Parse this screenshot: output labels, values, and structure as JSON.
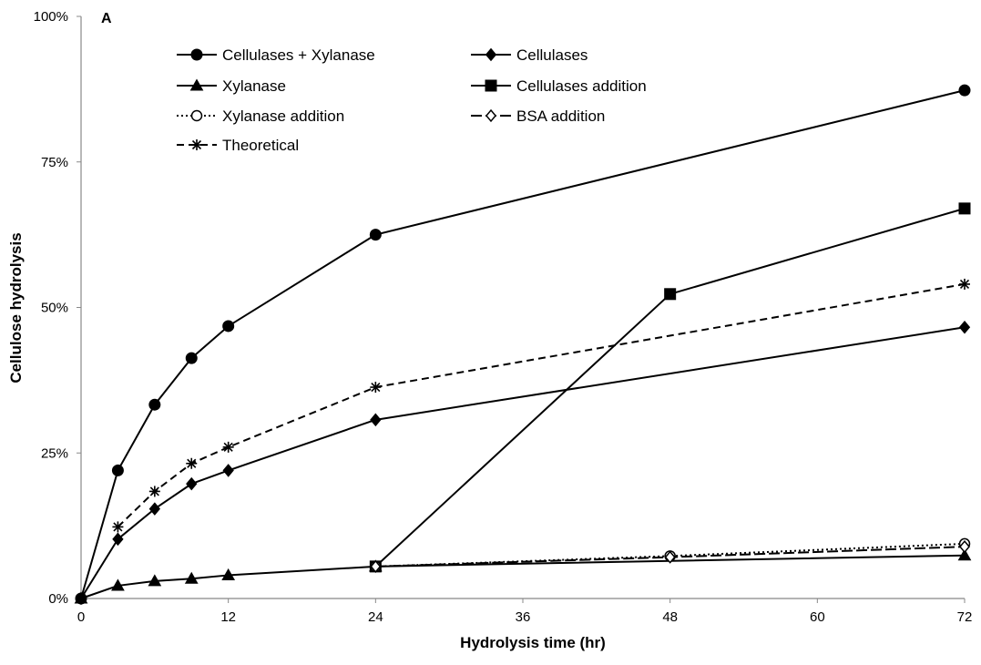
{
  "chart_data": {
    "type": "line",
    "panel_label": "A",
    "xlabel": "Hydrolysis time (hr)",
    "ylabel": "Cellulose hydrolysis",
    "xlim": [
      0,
      72
    ],
    "ylim": [
      0,
      1
    ],
    "x_ticks": [
      0,
      12,
      24,
      36,
      48,
      60,
      72
    ],
    "x_tick_labels": [
      "0",
      "12",
      "24",
      "36",
      "48",
      "60",
      "72"
    ],
    "y_ticks": [
      0,
      0.25,
      0.5,
      0.75,
      1
    ],
    "y_tick_labels": [
      "0%",
      "25%",
      "50%",
      "75%",
      "100%"
    ],
    "grid": false,
    "legend_position": "top-left",
    "series": [
      {
        "name": "Cellulases + Xylanase",
        "marker": "circle-filled",
        "line": "solid",
        "color": "#000000",
        "x": [
          0,
          3,
          6,
          9,
          12,
          24,
          72
        ],
        "y": [
          0,
          0.22,
          0.333,
          0.413,
          0.468,
          0.625,
          0.873
        ]
      },
      {
        "name": "Cellulases",
        "marker": "diamond-filled",
        "line": "solid",
        "color": "#000000",
        "x": [
          0,
          3,
          6,
          9,
          12,
          24,
          72
        ],
        "y": [
          0,
          0.102,
          0.154,
          0.197,
          0.22,
          0.307,
          0.466
        ]
      },
      {
        "name": "Xylanase",
        "marker": "triangle-filled",
        "line": "solid",
        "color": "#000000",
        "x": [
          0,
          3,
          6,
          9,
          12,
          24,
          72
        ],
        "y": [
          0,
          0.022,
          0.03,
          0.034,
          0.04,
          0.055,
          0.074
        ]
      },
      {
        "name": "Cellulases addition",
        "marker": "square-filled",
        "line": "solid",
        "color": "#000000",
        "x": [
          24,
          48,
          72
        ],
        "y": [
          0.055,
          0.523,
          0.67
        ]
      },
      {
        "name": "Xylanase addition",
        "marker": "circle-open",
        "line": "dotted",
        "color": "#000000",
        "x": [
          24,
          48,
          72
        ],
        "y": [
          0.055,
          0.073,
          0.094
        ]
      },
      {
        "name": "BSA addition",
        "marker": "diamond-open",
        "line": "longdash",
        "color": "#000000",
        "x": [
          24,
          48,
          72
        ],
        "y": [
          0.055,
          0.071,
          0.089
        ]
      },
      {
        "name": "Theoretical",
        "marker": "star",
        "line": "dashed",
        "color": "#000000",
        "x": [
          3,
          6,
          9,
          12,
          24,
          72
        ],
        "y": [
          0.123,
          0.184,
          0.232,
          0.26,
          0.363,
          0.54
        ]
      }
    ]
  }
}
